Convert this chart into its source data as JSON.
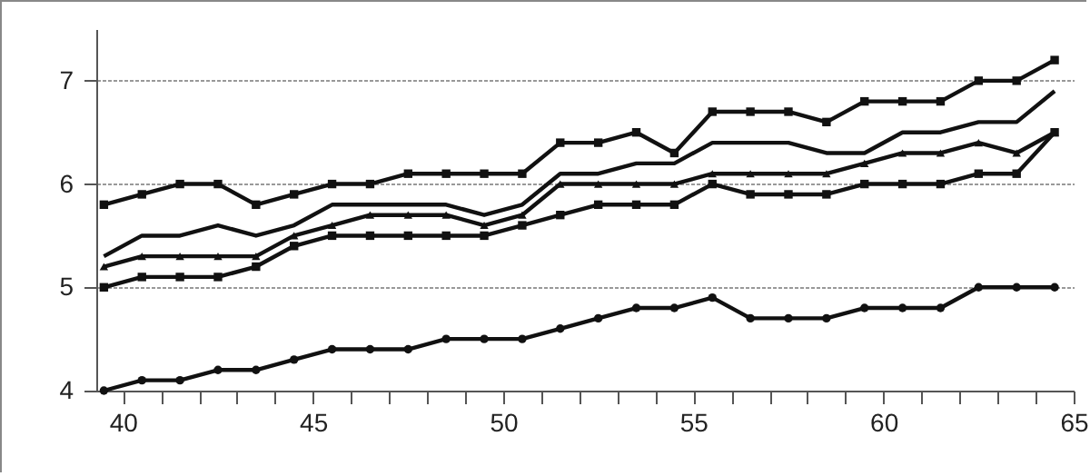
{
  "chart_data": {
    "type": "line",
    "x": [
      39.5,
      40.5,
      41.5,
      42.5,
      43.5,
      44.5,
      45.5,
      46.5,
      47.5,
      48.5,
      49.5,
      50.5,
      51.5,
      52.5,
      53.5,
      54.5,
      55.5,
      56.5,
      57.5,
      58.5,
      59.5,
      60.5,
      61.5,
      62.5,
      63.5,
      64.5
    ],
    "series": [
      {
        "color": "#111111",
        "marker": "square",
        "values": [
          5.8,
          5.9,
          6.0,
          6.0,
          5.8,
          5.9,
          6.0,
          6.0,
          6.1,
          6.1,
          6.1,
          6.1,
          6.4,
          6.4,
          6.5,
          6.3,
          6.7,
          6.7,
          6.7,
          6.6,
          6.8,
          6.8,
          6.8,
          7.0,
          7.0,
          7.2
        ]
      },
      {
        "color": "#111111",
        "marker": "none",
        "values": [
          5.3,
          5.5,
          5.5,
          5.6,
          5.5,
          5.6,
          5.8,
          5.8,
          5.8,
          5.8,
          5.7,
          5.8,
          6.1,
          6.1,
          6.2,
          6.2,
          6.4,
          6.4,
          6.4,
          6.3,
          6.3,
          6.5,
          6.5,
          6.6,
          6.6,
          6.9
        ]
      },
      {
        "color": "#111111",
        "marker": "triangle",
        "values": [
          5.2,
          5.3,
          5.3,
          5.3,
          5.3,
          5.5,
          5.6,
          5.7,
          5.7,
          5.7,
          5.6,
          5.7,
          6.0,
          6.0,
          6.0,
          6.0,
          6.1,
          6.1,
          6.1,
          6.1,
          6.2,
          6.3,
          6.3,
          6.4,
          6.3,
          6.5
        ]
      },
      {
        "color": "#111111",
        "marker": "square",
        "values": [
          5.0,
          5.1,
          5.1,
          5.1,
          5.2,
          5.4,
          5.5,
          5.5,
          5.5,
          5.5,
          5.5,
          5.6,
          5.7,
          5.8,
          5.8,
          5.8,
          6.0,
          5.9,
          5.9,
          5.9,
          6.0,
          6.0,
          6.0,
          6.1,
          6.1,
          6.5
        ]
      },
      {
        "color": "#111111",
        "marker": "circle",
        "values": [
          4.0,
          4.1,
          4.1,
          4.2,
          4.2,
          4.3,
          4.4,
          4.4,
          4.4,
          4.5,
          4.5,
          4.5,
          4.6,
          4.7,
          4.8,
          4.8,
          4.9,
          4.7,
          4.7,
          4.7,
          4.8,
          4.8,
          4.8,
          5.0,
          5.0,
          5.0
        ]
      }
    ],
    "xlim": [
      39.3,
      65
    ],
    "xticks": [
      40,
      {
        "value": 41,
        "label": null
      },
      {
        "value": 42,
        "label": null
      },
      {
        "value": 43,
        "label": null
      },
      {
        "value": 44,
        "label": null
      },
      45,
      {
        "value": 46,
        "label": null
      },
      {
        "value": 47,
        "label": null
      },
      {
        "value": 48,
        "label": null
      },
      {
        "value": 49,
        "label": null
      },
      50,
      {
        "value": 51,
        "label": null
      },
      {
        "value": 52,
        "label": null
      },
      {
        "value": 53,
        "label": null
      },
      {
        "value": 54,
        "label": null
      },
      55,
      {
        "value": 56,
        "label": null
      },
      {
        "value": 57,
        "label": null
      },
      {
        "value": 58,
        "label": null
      },
      {
        "value": 59,
        "label": null
      },
      60,
      {
        "value": 61,
        "label": null
      },
      {
        "value": 62,
        "label": null
      },
      {
        "value": 63,
        "label": null
      },
      {
        "value": 64,
        "label": null
      },
      65
    ],
    "ylim": [
      4,
      7.5
    ],
    "yticks": [
      4,
      5,
      6,
      7
    ],
    "grid": "y",
    "line_style": "solid"
  }
}
